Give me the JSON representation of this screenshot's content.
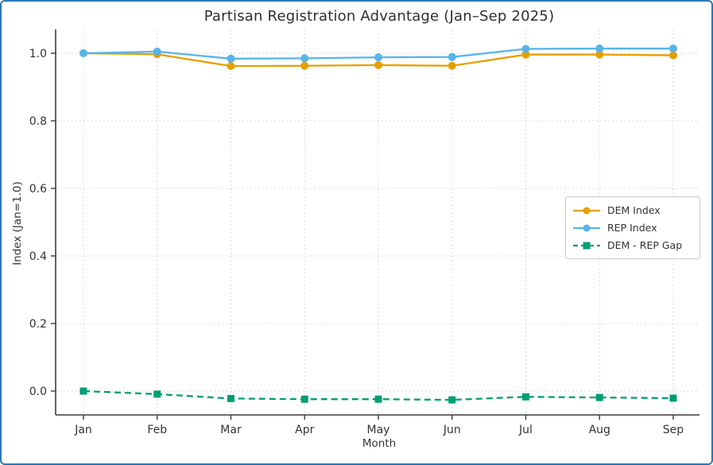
{
  "frame": {
    "border_color": "#2979b8",
    "background": "#ffffff"
  },
  "chart_data": {
    "type": "line",
    "title": "Partisan Registration Advantage (Jan–Sep 2025)",
    "xlabel": "Month",
    "ylabel": "Index (Jan=1.0)",
    "categories": [
      "Jan",
      "Feb",
      "Mar",
      "Apr",
      "May",
      "Jun",
      "Jul",
      "Aug",
      "Sep"
    ],
    "y_ticks": [
      0.0,
      0.2,
      0.4,
      0.6,
      0.8,
      1.0
    ],
    "ylim": [
      -0.07,
      1.07
    ],
    "grid": true,
    "legend_position": "center right",
    "series": [
      {
        "name": "DEM Index",
        "color": "#E69F00",
        "marker": "circle",
        "line_style": "solid",
        "values": [
          1.0,
          0.997,
          0.962,
          0.963,
          0.965,
          0.963,
          0.996,
          0.996,
          0.994
        ]
      },
      {
        "name": "REP Index",
        "color": "#56B4E9",
        "marker": "circle",
        "line_style": "solid",
        "values": [
          1.0,
          1.005,
          0.984,
          0.985,
          0.988,
          0.989,
          1.013,
          1.014,
          1.014
        ]
      },
      {
        "name": "DEM - REP Gap",
        "color": "#009E73",
        "marker": "square",
        "line_style": "dashed",
        "values": [
          0.0,
          -0.009,
          -0.022,
          -0.024,
          -0.024,
          -0.026,
          -0.017,
          -0.019,
          -0.021
        ]
      }
    ],
    "style": {
      "text_color": "#333333",
      "grid_color": "#d9d9d9",
      "axis_color": "#3c3c3c"
    }
  }
}
